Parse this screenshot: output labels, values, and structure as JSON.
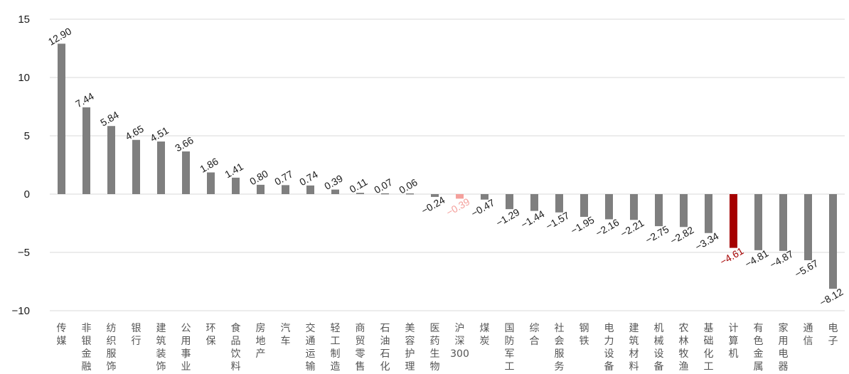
{
  "chart_data": {
    "type": "bar",
    "title": "",
    "xlabel": "",
    "ylabel": "",
    "ylim": [
      -10,
      15
    ],
    "yticks": [
      15,
      10,
      5,
      0,
      -5,
      -10
    ],
    "ytick_labels": [
      "15",
      "10",
      "5",
      "0",
      "−5",
      "−10"
    ],
    "grid": "horizontal",
    "categories": [
      "传媒",
      "非银金融",
      "纺织服饰",
      "银行",
      "建筑装饰",
      "公用事业",
      "环保",
      "食品饮料",
      "房地产",
      "汽车",
      "交通运输",
      "轻工制造",
      "商贸零售",
      "石油石化",
      "美容护理",
      "医药生物",
      "沪深300",
      "煤炭",
      "国防军工",
      "综合",
      "社会服务",
      "钢铁",
      "电力设备",
      "建筑材料",
      "机械设备",
      "农林牧渔",
      "基础化工",
      "计算机",
      "有色金属",
      "家用电器",
      "通信",
      "电子"
    ],
    "values": [
      12.9,
      7.44,
      5.84,
      4.65,
      4.51,
      3.66,
      1.86,
      1.41,
      0.8,
      0.77,
      0.74,
      0.39,
      0.11,
      0.07,
      0.06,
      -0.24,
      -0.39,
      -0.47,
      -1.29,
      -1.44,
      -1.57,
      -1.95,
      -2.16,
      -2.21,
      -2.75,
      -2.82,
      -3.34,
      -4.61,
      -4.81,
      -4.87,
      -5.67,
      -8.12
    ],
    "value_labels": [
      "12.90",
      "7.44",
      "5.84",
      "4.65",
      "4.51",
      "3.66",
      "1.86",
      "1.41",
      "0.80",
      "0.77",
      "0.74",
      "0.39",
      "0.11",
      "0.07",
      "0.06",
      "−0.24",
      "−0.39",
      "−0.47",
      "−1.29",
      "−1.44",
      "−1.57",
      "−1.95",
      "−2.16",
      "−2.21",
      "−2.75",
      "−2.82",
      "−3.34",
      "−4.61",
      "−4.81",
      "−4.87",
      "−5.67",
      "−8.12"
    ],
    "colors": {
      "default": "#7f7f7f",
      "highlight_index_16": "#f4a09c",
      "highlight_index_27": "#a50000",
      "gridline": "#d9d9d9",
      "label_default": "#1a1a1a",
      "label_highlight_16": "#f4a09c",
      "label_highlight_27": "#a50000"
    }
  }
}
